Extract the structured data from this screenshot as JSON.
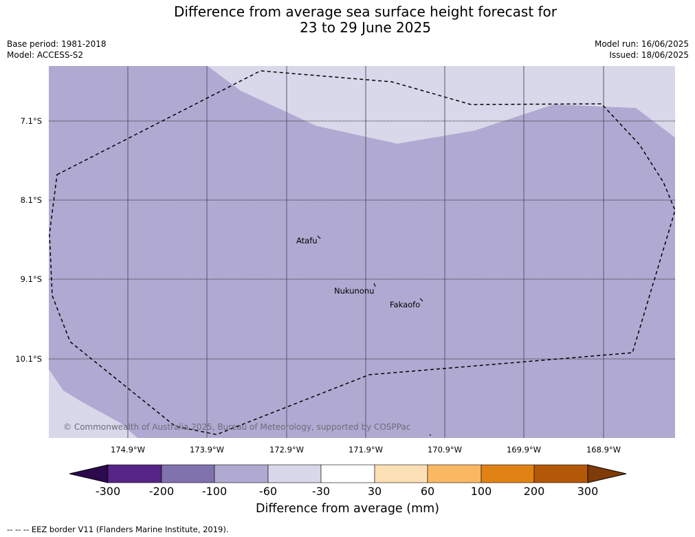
{
  "title": {
    "line1": "Difference from average sea surface height forecast for",
    "line2": "23 to 29 June 2025"
  },
  "meta": {
    "base_period": "Base period: 1981-2018",
    "model": "Model: ACCESS-S2",
    "model_run": "Model run: 16/06/2025",
    "issued": "Issued: 18/06/2025"
  },
  "map": {
    "lat_labels": [
      "7.1°S",
      "8.1°S",
      "9.1°S",
      "10.1°S"
    ],
    "lon_labels": [
      "174.9°W",
      "173.9°W",
      "172.9°W",
      "171.9°W",
      "170.9°W",
      "169.9°W",
      "168.9°W"
    ],
    "places": [
      "Atafu",
      "Nukunonu",
      "Fakaofo"
    ],
    "copyright": "© Commonwealth of Australia 2025, Bureau of Meteorology, supported by COSPPac",
    "fill_colors": {
      "main": "#b0aad2",
      "light": "#d8d8ea"
    }
  },
  "colorbar": {
    "title": "Difference from average (mm)",
    "ticks": [
      "-300",
      "-200",
      "-100",
      "-60",
      "-30",
      "30",
      "60",
      "100",
      "200",
      "300"
    ],
    "colors": [
      "#2d0a4e",
      "#572488",
      "#8072ac",
      "#b0aad2",
      "#d8d8ea",
      "#ffffff",
      "#fee0b6",
      "#fbb863",
      "#e08214",
      "#b35806",
      "#7f3b08"
    ]
  },
  "footnote": "--  --  -- EEZ border V11 (Flanders Marine Institute, 2019)."
}
